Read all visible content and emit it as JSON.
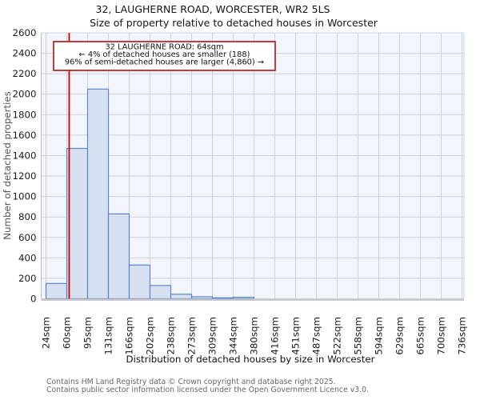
{
  "header": {
    "title": "32, LAUGHERNE ROAD, WORCESTER, WR2 5LS",
    "subtitle": "Size of property relative to detached houses in Worcester"
  },
  "chart_data": {
    "type": "bar",
    "title": "Size of property relative to detached houses in Worcester",
    "xlabel": "Distribution of detached houses by size in Worcester",
    "ylabel": "Number of detached properties",
    "bin_edges_sqm": [
      24,
      60,
      95,
      131,
      166,
      202,
      238,
      273,
      309,
      344,
      380,
      416,
      451,
      487,
      522,
      558,
      594,
      629,
      665,
      700,
      736
    ],
    "x_tick_labels": [
      "24sqm",
      "60sqm",
      "95sqm",
      "131sqm",
      "166sqm",
      "202sqm",
      "238sqm",
      "273sqm",
      "309sqm",
      "344sqm",
      "380sqm",
      "416sqm",
      "451sqm",
      "487sqm",
      "522sqm",
      "558sqm",
      "594sqm",
      "629sqm",
      "665sqm",
      "700sqm",
      "736sqm"
    ],
    "values": [
      150,
      1470,
      2050,
      830,
      330,
      130,
      45,
      20,
      10,
      15,
      0,
      0,
      0,
      0,
      0,
      0,
      0,
      0,
      0,
      0
    ],
    "ylim": [
      0,
      2600
    ],
    "y_tick_step": 200,
    "grid": true,
    "legend": null,
    "marker": {
      "value_sqm": 64,
      "color": "#cc0000"
    },
    "annotation": {
      "line1": "32 LAUGHERNE ROAD: 64sqm",
      "line2": "← 4% of detached houses are smaller (188)",
      "line3": "96% of semi-detached houses are larger (4,860) →",
      "border_color": "#b00000"
    },
    "colors": {
      "bar_fill": "#d7e0f0",
      "bar_edge": "#5b87c7",
      "plot_bg": "#f2f5fb",
      "grid": "#cfd3da",
      "spine": "#c6c6c6"
    }
  },
  "footer": {
    "line1": "Contains HM Land Registry data © Crown copyright and database right 2025.",
    "line2": "Contains public sector information licensed under the Open Government Licence v3.0."
  }
}
